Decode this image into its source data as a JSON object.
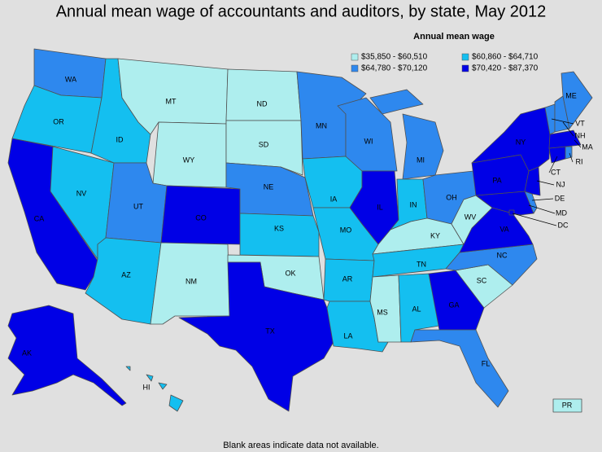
{
  "title": "Annual mean wage of accountants and auditors, by state, May 2012",
  "legend": {
    "title": "Annual mean wage",
    "bins": [
      {
        "label": "$35,850 - $60,510",
        "color": "#aeeeee"
      },
      {
        "label": "$60,860 - $64,710",
        "color": "#14bff0"
      },
      {
        "label": "$64,780 - $70,120",
        "color": "#2e88ee"
      },
      {
        "label": "$70,420 - $87,370",
        "color": "#0000e6"
      }
    ]
  },
  "states": [
    {
      "abbr": "WA",
      "bin": 2
    },
    {
      "abbr": "OR",
      "bin": 1
    },
    {
      "abbr": "CA",
      "bin": 3
    },
    {
      "abbr": "NV",
      "bin": 1
    },
    {
      "abbr": "ID",
      "bin": 1
    },
    {
      "abbr": "MT",
      "bin": 0
    },
    {
      "abbr": "WY",
      "bin": 0
    },
    {
      "abbr": "UT",
      "bin": 2
    },
    {
      "abbr": "AZ",
      "bin": 1
    },
    {
      "abbr": "CO",
      "bin": 3
    },
    {
      "abbr": "NM",
      "bin": 0
    },
    {
      "abbr": "ND",
      "bin": 0
    },
    {
      "abbr": "SD",
      "bin": 0
    },
    {
      "abbr": "NE",
      "bin": 2
    },
    {
      "abbr": "KS",
      "bin": 1
    },
    {
      "abbr": "OK",
      "bin": 0
    },
    {
      "abbr": "TX",
      "bin": 3
    },
    {
      "abbr": "MN",
      "bin": 2
    },
    {
      "abbr": "IA",
      "bin": 1
    },
    {
      "abbr": "MO",
      "bin": 1
    },
    {
      "abbr": "AR",
      "bin": 1
    },
    {
      "abbr": "LA",
      "bin": 1
    },
    {
      "abbr": "WI",
      "bin": 2
    },
    {
      "abbr": "IL",
      "bin": 3
    },
    {
      "abbr": "MI",
      "bin": 2
    },
    {
      "abbr": "IN",
      "bin": 1
    },
    {
      "abbr": "OH",
      "bin": 2
    },
    {
      "abbr": "KY",
      "bin": 0
    },
    {
      "abbr": "TN",
      "bin": 1
    },
    {
      "abbr": "MS",
      "bin": 0
    },
    {
      "abbr": "AL",
      "bin": 1
    },
    {
      "abbr": "GA",
      "bin": 3
    },
    {
      "abbr": "FL",
      "bin": 2
    },
    {
      "abbr": "SC",
      "bin": 0
    },
    {
      "abbr": "NC",
      "bin": 2
    },
    {
      "abbr": "VA",
      "bin": 3
    },
    {
      "abbr": "WV",
      "bin": 0
    },
    {
      "abbr": "MD",
      "bin": 3
    },
    {
      "abbr": "DE",
      "bin": 2
    },
    {
      "abbr": "DC",
      "bin": 3
    },
    {
      "abbr": "PA",
      "bin": 3
    },
    {
      "abbr": "NJ",
      "bin": 3
    },
    {
      "abbr": "NY",
      "bin": 3
    },
    {
      "abbr": "CT",
      "bin": 3
    },
    {
      "abbr": "RI",
      "bin": 2
    },
    {
      "abbr": "MA",
      "bin": 3
    },
    {
      "abbr": "VT",
      "bin": 2
    },
    {
      "abbr": "NH",
      "bin": 2
    },
    {
      "abbr": "ME",
      "bin": 2
    },
    {
      "abbr": "AK",
      "bin": 3
    },
    {
      "abbr": "HI",
      "bin": 1
    },
    {
      "abbr": "PR",
      "bin": 0
    }
  ],
  "footnote": "Blank areas indicate data not available."
}
